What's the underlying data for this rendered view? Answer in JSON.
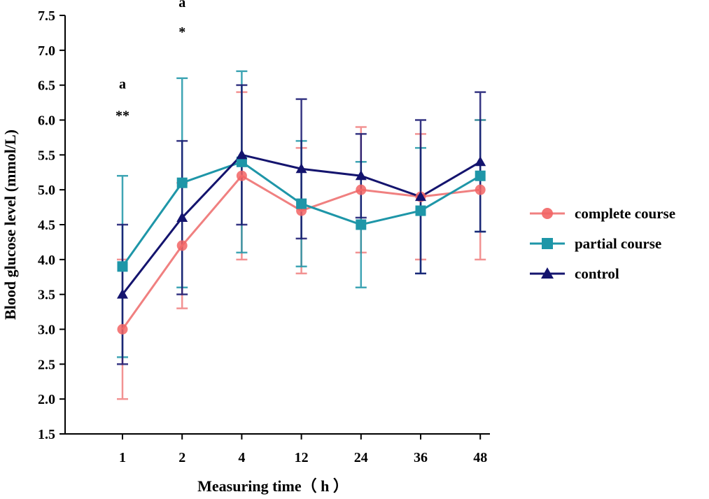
{
  "chart_data": {
    "type": "line",
    "title": "",
    "xlabel": "Measuring time（ h ）",
    "ylabel": "Blood glucose level (mmol/L)",
    "categories": [
      "1",
      "2",
      "4",
      "12",
      "24",
      "36",
      "48"
    ],
    "ylim": [
      1.5,
      7.5
    ],
    "yticks": [
      "1.5",
      "2.0",
      "2.5",
      "3.0",
      "3.5",
      "4.0",
      "4.5",
      "5.0",
      "5.5",
      "6.0",
      "6.5",
      "7.0",
      "7.5"
    ],
    "legend_position": "right",
    "series": [
      {
        "name": "complete course",
        "marker": "circle",
        "color": "#F08080",
        "values": [
          3.0,
          4.2,
          5.2,
          4.7,
          5.0,
          4.9,
          5.0
        ],
        "err_high": [
          4.0,
          5.1,
          6.4,
          5.6,
          5.9,
          5.8,
          6.0
        ],
        "err_low": [
          2.0,
          3.3,
          4.0,
          3.8,
          4.1,
          4.0,
          4.0
        ]
      },
      {
        "name": "partial course",
        "marker": "square",
        "color": "#1E96A8",
        "values": [
          3.9,
          5.1,
          5.4,
          4.8,
          4.5,
          4.7,
          5.2
        ],
        "err_high": [
          5.2,
          6.6,
          6.7,
          5.7,
          5.4,
          5.6,
          6.0
        ],
        "err_low": [
          2.6,
          3.6,
          4.1,
          3.9,
          3.6,
          3.8,
          4.4
        ]
      },
      {
        "name": "control",
        "marker": "triangle",
        "color": "#14146E",
        "values": [
          3.5,
          4.6,
          5.5,
          5.3,
          5.2,
          4.9,
          5.4
        ],
        "err_high": [
          4.5,
          5.7,
          6.5,
          6.3,
          5.8,
          6.0,
          6.4
        ],
        "err_low": [
          2.5,
          3.5,
          4.5,
          4.3,
          4.6,
          3.8,
          4.4
        ]
      }
    ],
    "annotations": [
      {
        "category": "1",
        "value": 6.45,
        "text": "a"
      },
      {
        "category": "1",
        "value": 6.0,
        "text": "**"
      },
      {
        "category": "2",
        "value": 7.62,
        "text": "a"
      },
      {
        "category": "2",
        "value": 7.2,
        "text": "*"
      }
    ]
  }
}
